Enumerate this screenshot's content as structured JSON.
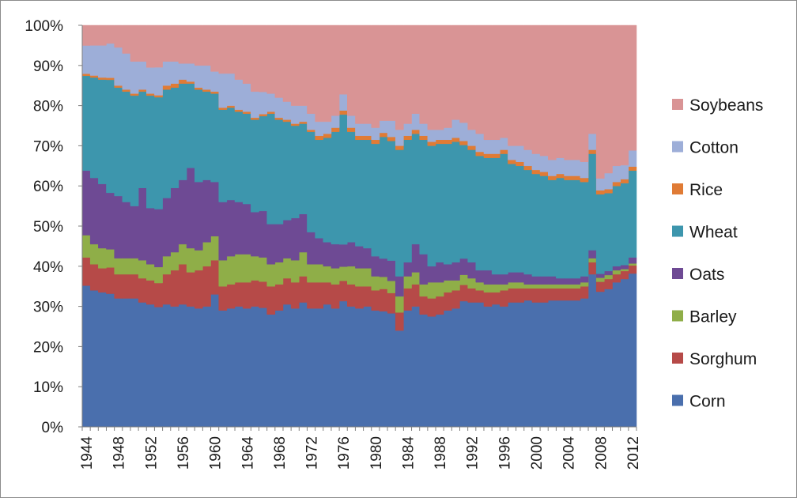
{
  "chart_data": {
    "type": "area",
    "stacked": true,
    "normalized": true,
    "x": [
      1944,
      1945,
      1946,
      1947,
      1948,
      1949,
      1950,
      1951,
      1952,
      1953,
      1954,
      1955,
      1956,
      1957,
      1958,
      1959,
      1960,
      1961,
      1962,
      1963,
      1964,
      1965,
      1966,
      1967,
      1968,
      1969,
      1970,
      1971,
      1972,
      1973,
      1974,
      1975,
      1976,
      1977,
      1978,
      1979,
      1980,
      1981,
      1982,
      1983,
      1984,
      1985,
      1986,
      1987,
      1988,
      1989,
      1990,
      1991,
      1992,
      1993,
      1994,
      1995,
      1996,
      1997,
      1998,
      1999,
      2000,
      2001,
      2002,
      2003,
      2004,
      2005,
      2006,
      2007,
      2008,
      2009,
      2010,
      2011,
      2012
    ],
    "x_ticks": [
      "1944",
      "1948",
      "1952",
      "1956",
      "1960",
      "1964",
      "1968",
      "1972",
      "1976",
      "1980",
      "1984",
      "1988",
      "1992",
      "1996",
      "2000",
      "2004",
      "2008",
      "2012"
    ],
    "y_ticks": [
      "0%",
      "10%",
      "20%",
      "30%",
      "40%",
      "50%",
      "60%",
      "70%",
      "80%",
      "90%",
      "100%"
    ],
    "ylim": [
      0,
      100
    ],
    "title": "",
    "xlabel": "",
    "ylabel": "",
    "legend_position": "right",
    "series": [
      {
        "name": "Corn",
        "color": "#4a6fad",
        "values": [
          35,
          34,
          33.5,
          33,
          32,
          32,
          32,
          31,
          30.5,
          30,
          30.5,
          30,
          30.5,
          30,
          29.5,
          30,
          33,
          29,
          29.5,
          30,
          29.5,
          30,
          29.5,
          28,
          29,
          30.5,
          29.5,
          31,
          29.5,
          29.5,
          30.5,
          29.5,
          31,
          30,
          29.5,
          30,
          29,
          28.5,
          28,
          24,
          29,
          30,
          28,
          27.5,
          28,
          29,
          29.5,
          31,
          31,
          31,
          30,
          30.5,
          30,
          31,
          31,
          31.5,
          31,
          31,
          31.5,
          31.5,
          31.5,
          31.5,
          32,
          38,
          34,
          34.5,
          36,
          37,
          38
        ]
      },
      {
        "name": "Sorghum",
        "color": "#b64a48",
        "values": [
          7,
          6.5,
          6,
          6.5,
          6,
          6,
          6,
          6,
          6,
          6,
          7.5,
          9,
          10,
          8.5,
          9.5,
          10,
          8.5,
          6,
          6,
          6,
          6.5,
          6.5,
          6.5,
          7,
          6.5,
          6.5,
          6.5,
          6.5,
          6.5,
          6.5,
          5.5,
          6,
          5,
          5.5,
          5.5,
          5,
          5,
          5.5,
          5,
          4.5,
          5.5,
          5.5,
          4.5,
          4.5,
          4.5,
          4.5,
          4.5,
          4,
          3.5,
          3,
          3.5,
          3,
          4,
          3.5,
          3.5,
          3,
          3.5,
          3.5,
          3,
          3,
          3,
          3,
          3,
          3,
          2.5,
          2.5,
          2,
          2,
          2
        ]
      },
      {
        "name": "Barley",
        "color": "#8fae48",
        "values": [
          5.5,
          5,
          5,
          4.5,
          4,
          4,
          4,
          4.5,
          4,
          4,
          4.5,
          4.5,
          5,
          6,
          5,
          6,
          6,
          6.5,
          7,
          7,
          7,
          6,
          6,
          5.5,
          5.5,
          5,
          5.5,
          6,
          4.5,
          4.5,
          4,
          4,
          3.5,
          4.5,
          4.5,
          4.5,
          3.5,
          3,
          3,
          4,
          3,
          3,
          3,
          4,
          3.5,
          3,
          2.5,
          2.5,
          2.5,
          2,
          2,
          2,
          1.5,
          1.5,
          1.5,
          1,
          1,
          1,
          1,
          1,
          1,
          1,
          1,
          1,
          1,
          1,
          1,
          0.5,
          0.5
        ]
      },
      {
        "name": "Oats",
        "color": "#6e4a94",
        "values": [
          16,
          16.5,
          16,
          14,
          15.5,
          14,
          13,
          18,
          14,
          14.5,
          14.5,
          16,
          16,
          20,
          17,
          15.5,
          13.5,
          14.5,
          14,
          13,
          12.5,
          11,
          11.5,
          10,
          9.5,
          9.5,
          10.5,
          9.5,
          8,
          6.5,
          6,
          6,
          5.5,
          6,
          5.5,
          5,
          5,
          4.5,
          5,
          5,
          3.5,
          7,
          7.5,
          4,
          5,
          4,
          4.5,
          4,
          4,
          3,
          3.5,
          2.5,
          2.5,
          2.5,
          2.5,
          2.5,
          2,
          2,
          2,
          1.5,
          1.5,
          1.5,
          1.5,
          2,
          1,
          1,
          1,
          1,
          1.5
        ]
      },
      {
        "name": "Wheat",
        "color": "#3d96ad",
        "values": [
          23.5,
          25,
          26,
          28,
          27,
          27.5,
          27.5,
          24,
          28,
          28,
          27,
          25,
          24,
          21,
          23,
          22,
          22,
          23,
          23,
          22.5,
          22.5,
          23,
          23.5,
          27.5,
          26,
          24.5,
          23,
          22.5,
          25,
          24.5,
          26,
          28,
          32,
          27.5,
          26.5,
          27,
          28,
          30,
          29.5,
          31.5,
          30.5,
          27.5,
          28.5,
          30,
          29.5,
          30,
          30,
          28,
          28,
          28.5,
          28,
          29,
          30,
          27,
          26.5,
          26,
          25.5,
          25,
          24,
          25,
          24.5,
          24.5,
          23.5,
          24,
          20,
          19.5,
          20,
          20.5,
          21.5
        ]
      },
      {
        "name": "Rice",
        "color": "#e07b35",
        "values": [
          0.5,
          0.5,
          0.5,
          0.5,
          0.5,
          0.5,
          0.5,
          0.5,
          0.5,
          0.5,
          1,
          1,
          1,
          0.5,
          0.5,
          0.5,
          0.5,
          0.5,
          0.5,
          0.5,
          0.5,
          0.5,
          0.5,
          0.5,
          0.5,
          0.5,
          0.5,
          0.5,
          0.5,
          1,
          1,
          1,
          1,
          1,
          1,
          1,
          1,
          1,
          1,
          1,
          1,
          1,
          1,
          1,
          1,
          1,
          1,
          1,
          1,
          1,
          1,
          1,
          1,
          1,
          1,
          1,
          1,
          1,
          1,
          1,
          1,
          1,
          1,
          1,
          1,
          1,
          1,
          1,
          1
        ]
      },
      {
        "name": "Cotton",
        "color": "#9daed8",
        "values": [
          7,
          7.5,
          8,
          8.5,
          9.5,
          9,
          8,
          7,
          6.5,
          7,
          6,
          5.5,
          4,
          4.5,
          5.5,
          6,
          5,
          8.5,
          8,
          7.5,
          7,
          6.5,
          5.5,
          4.5,
          5,
          4.5,
          4.5,
          4,
          4,
          3.5,
          3,
          3,
          4,
          3,
          3,
          3,
          3,
          3,
          4,
          4,
          3,
          4,
          3,
          3,
          2.5,
          3,
          4.5,
          4.5,
          4,
          4.5,
          3.5,
          3.5,
          3,
          3.5,
          4,
          4,
          4,
          4,
          4,
          4,
          4,
          4,
          4,
          4,
          3,
          4,
          4,
          3.5,
          4
        ]
      },
      {
        "name": "Soybeans",
        "color": "#d99495",
        "values": [
          5,
          5,
          5,
          4.5,
          5.5,
          7,
          9,
          9,
          10.5,
          10.5,
          9,
          9,
          9.5,
          9.5,
          10,
          10,
          11.5,
          12,
          12,
          13.5,
          14.5,
          16.5,
          16.5,
          17,
          18,
          19,
          20,
          20,
          22,
          24,
          24,
          22.5,
          17,
          22.5,
          24.5,
          24.5,
          25.5,
          23.5,
          23.5,
          26,
          24.5,
          22,
          24.5,
          26,
          26,
          25.5,
          23.5,
          24,
          26,
          27,
          28.5,
          28.5,
          28,
          30,
          30,
          31,
          32,
          32.5,
          33.5,
          33,
          33.5,
          33.5,
          34,
          27,
          38.5,
          37,
          35,
          35,
          31
        ]
      }
    ]
  }
}
